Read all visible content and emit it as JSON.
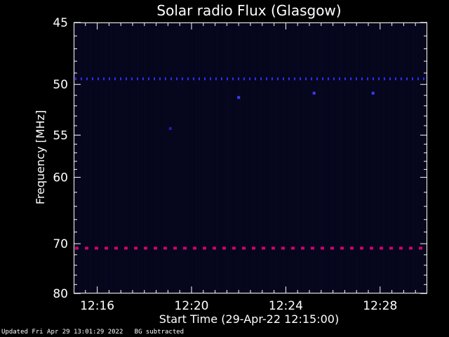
{
  "chart_data": {
    "type": "heatmap",
    "title": "Solar radio Flux (Glasgow)",
    "xlabel": "Start Time (29-Apr-22 12:15:00)",
    "ylabel": "Frequency [MHz]",
    "x_range_minutes": [
      12.25,
      12.75
    ],
    "x_ticks": [
      "12:16",
      "12:20",
      "12:24",
      "12:28"
    ],
    "x_tick_minutes": [
      16,
      20,
      24,
      28
    ],
    "x_domain_minutes": [
      15,
      30
    ],
    "y_ticks": [
      45,
      50,
      55,
      60,
      70,
      80
    ],
    "ylim": [
      45,
      80
    ],
    "y_scale": "reciprocal",
    "y_axis_inverted": true,
    "background_color": "#05051a",
    "persistent_lines": [
      {
        "frequency_mhz": 49.5,
        "color": "#2d2dff",
        "style": "dashed"
      },
      {
        "frequency_mhz": 70.8,
        "color": "#d6006e",
        "style": "dashed"
      }
    ],
    "spots": [
      {
        "time_min": 22.0,
        "frequency_mhz": 51.2,
        "color": "#3a3aff"
      },
      {
        "time_min": 25.2,
        "frequency_mhz": 50.8,
        "color": "#3a3aff"
      },
      {
        "time_min": 27.7,
        "frequency_mhz": 50.8,
        "color": "#3a3aff"
      },
      {
        "time_min": 19.1,
        "frequency_mhz": 54.3,
        "color": "#2020aa"
      }
    ]
  },
  "footer": {
    "updated": "Updated Fri Apr 29 13:01:29 2022",
    "note": "BG subtracted"
  },
  "colors": {
    "axis": "#ffffff",
    "text": "#ffffff"
  }
}
